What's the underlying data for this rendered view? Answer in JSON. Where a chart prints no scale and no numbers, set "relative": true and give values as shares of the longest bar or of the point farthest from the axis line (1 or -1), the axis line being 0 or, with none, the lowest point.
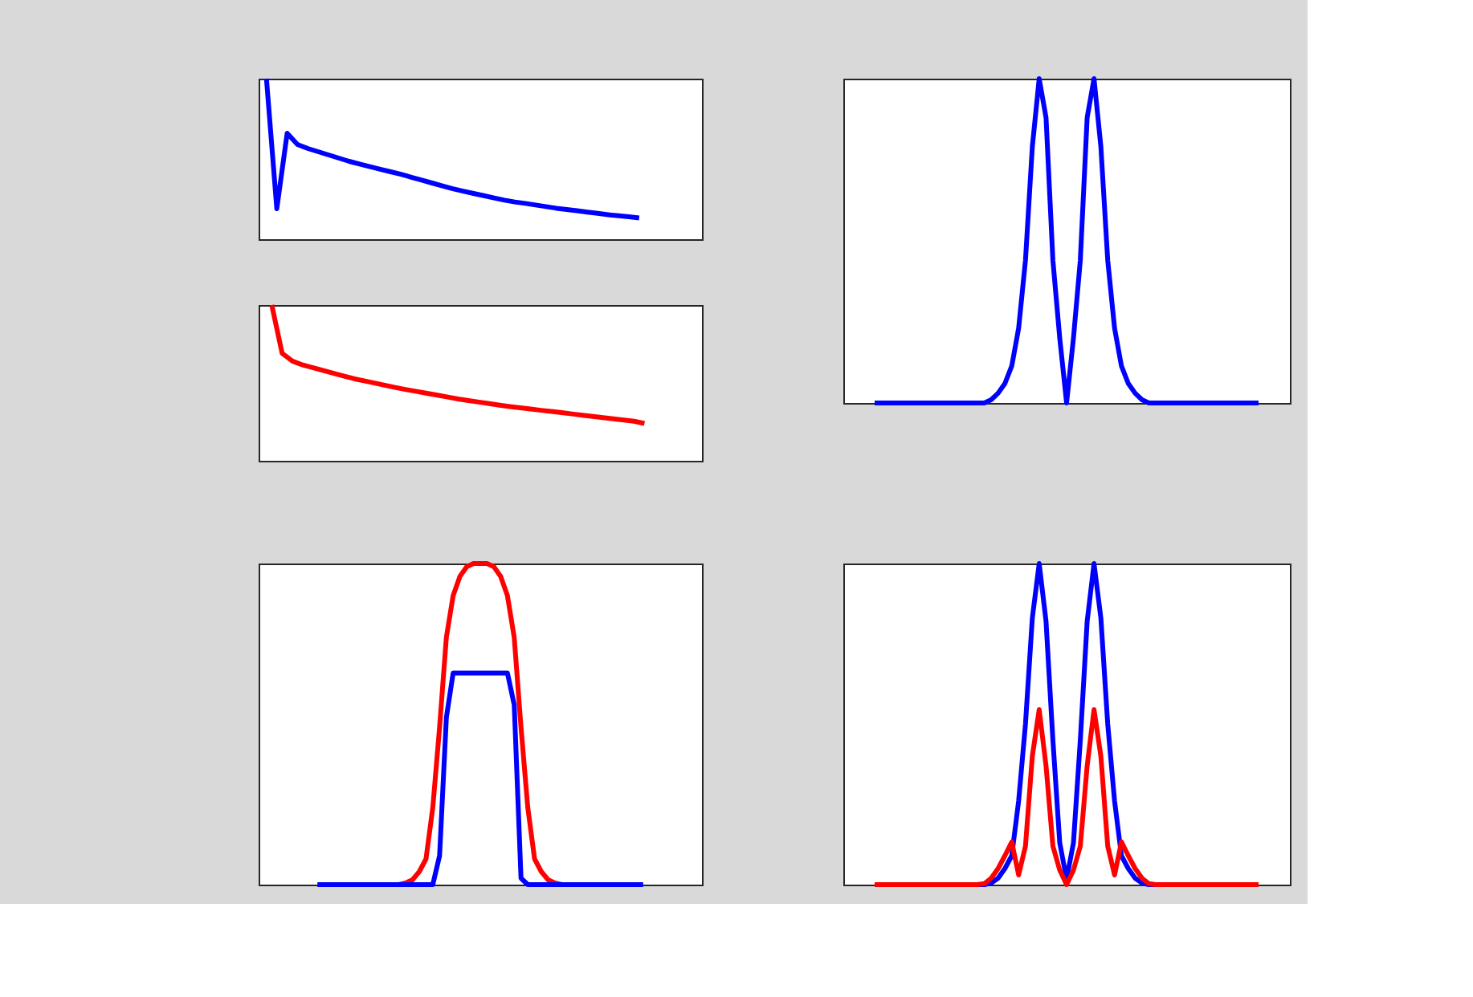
{
  "chart_data": [
    {
      "type": "line",
      "relative": true,
      "tick_labels": false,
      "categories": [
        null,
        null,
        null,
        null,
        null,
        null,
        null,
        null,
        null,
        null,
        null,
        null,
        null,
        null,
        null,
        null,
        null,
        null,
        null,
        null,
        null,
        null,
        null,
        null,
        null,
        null,
        null,
        null,
        null,
        null,
        null,
        null,
        null,
        null,
        null,
        null,
        null
      ],
      "series": [
        {
          "color": "#0000ff",
          "values": [
            1.0,
            0.19,
            0.66,
            0.59,
            0.565,
            0.545,
            0.525,
            0.505,
            0.485,
            0.468,
            0.452,
            0.436,
            0.42,
            0.404,
            0.386,
            0.368,
            0.35,
            0.332,
            0.314,
            0.299,
            0.285,
            0.271,
            0.257,
            0.243,
            0.232,
            0.223,
            0.213,
            0.203,
            0.193,
            0.185,
            0.177,
            0.169,
            0.161,
            0.153,
            0.146,
            0.14,
            0.133
          ]
        }
      ]
    },
    {
      "type": "line",
      "relative": true,
      "tick_labels": false,
      "categories": [
        null,
        null,
        null,
        null,
        null,
        null,
        null,
        null,
        null,
        null,
        null,
        null,
        null,
        null,
        null,
        null,
        null,
        null,
        null,
        null,
        null,
        null,
        null,
        null,
        null,
        null,
        null,
        null,
        null,
        null,
        null,
        null,
        null,
        null,
        null,
        null,
        null
      ],
      "series": [
        {
          "color": "#ff0000",
          "values": [
            1.0,
            0.69,
            0.64,
            0.615,
            0.597,
            0.579,
            0.561,
            0.543,
            0.526,
            0.512,
            0.498,
            0.484,
            0.47,
            0.457,
            0.445,
            0.433,
            0.421,
            0.409,
            0.397,
            0.387,
            0.377,
            0.367,
            0.357,
            0.348,
            0.34,
            0.332,
            0.324,
            0.317,
            0.309,
            0.301,
            0.293,
            0.285,
            0.277,
            0.269,
            0.262,
            0.254,
            0.24
          ]
        }
      ]
    },
    {
      "type": "line",
      "relative": true,
      "tick_labels": false,
      "categories": [
        null,
        null,
        null,
        null,
        null,
        null,
        null,
        null,
        null,
        null,
        null,
        null,
        null,
        null,
        null,
        null,
        null,
        null,
        null,
        null,
        null,
        null,
        null,
        null,
        null,
        null,
        null,
        null,
        null,
        null,
        null,
        null,
        null,
        null,
        null,
        null,
        null,
        null,
        null,
        null,
        null,
        null,
        null,
        null,
        null,
        null,
        null,
        null,
        null,
        null,
        null,
        null,
        null,
        null,
        null,
        null,
        null
      ],
      "series": [
        {
          "color": "#0000ff",
          "values": [
            0,
            0,
            0,
            0,
            0,
            0,
            0,
            0,
            0,
            0,
            0,
            0,
            0,
            0,
            0,
            0,
            0,
            0.01,
            0.03,
            0.06,
            0.114,
            0.23,
            0.44,
            0.79,
            1,
            0.88,
            0.44,
            0.2,
            0,
            0.2,
            0.44,
            0.88,
            1,
            0.79,
            0.44,
            0.23,
            0.114,
            0.06,
            0.03,
            0.01,
            0,
            0,
            0,
            0,
            0,
            0,
            0,
            0,
            0,
            0,
            0,
            0,
            0,
            0,
            0,
            0,
            0
          ]
        }
      ]
    },
    {
      "type": "line",
      "relative": true,
      "tick_labels": false,
      "categories": [
        null,
        null,
        null,
        null,
        null,
        null,
        null,
        null,
        null,
        null,
        null,
        null,
        null,
        null,
        null,
        null,
        null,
        null,
        null,
        null,
        null,
        null,
        null,
        null,
        null,
        null,
        null,
        null,
        null,
        null,
        null,
        null,
        null,
        null,
        null,
        null,
        null,
        null,
        null,
        null,
        null,
        null,
        null,
        null,
        null,
        null,
        null,
        null,
        null
      ],
      "series": [
        {
          "color": "#ff0000",
          "values": [
            null,
            null,
            null,
            null,
            null,
            null,
            null,
            null,
            null,
            null,
            0,
            0,
            0,
            0.005,
            0.015,
            0.04,
            0.08,
            0.24,
            0.49,
            0.77,
            0.9,
            0.96,
            0.99,
            1,
            1,
            1,
            0.99,
            0.96,
            0.9,
            0.77,
            0.49,
            0.24,
            0.08,
            0.04,
            0.015,
            0.005,
            0,
            0,
            0,
            null,
            null,
            null,
            null,
            null,
            null,
            null,
            null,
            null,
            null
          ]
        },
        {
          "color": "#0000ff",
          "values": [
            0,
            0,
            0,
            0,
            0,
            0,
            0,
            0,
            0,
            0,
            0,
            0,
            0,
            0,
            0,
            0,
            0,
            0,
            0.09,
            0.52,
            0.659,
            0.659,
            0.659,
            0.659,
            0.659,
            0.659,
            0.659,
            0.659,
            0.659,
            0.56,
            0.02,
            0,
            0,
            0,
            0,
            0,
            0,
            0,
            0,
            0,
            0,
            0,
            0,
            0,
            0,
            0,
            0,
            0,
            0
          ]
        }
      ]
    },
    {
      "type": "line",
      "relative": true,
      "tick_labels": false,
      "categories": [
        null,
        null,
        null,
        null,
        null,
        null,
        null,
        null,
        null,
        null,
        null,
        null,
        null,
        null,
        null,
        null,
        null,
        null,
        null,
        null,
        null,
        null,
        null,
        null,
        null,
        null,
        null,
        null,
        null,
        null,
        null,
        null,
        null,
        null,
        null,
        null,
        null,
        null,
        null,
        null,
        null,
        null,
        null,
        null,
        null,
        null,
        null,
        null,
        null,
        null,
        null,
        null,
        null,
        null,
        null,
        null,
        null
      ],
      "series": [
        {
          "color": "#0000ff",
          "values": [
            null,
            null,
            null,
            null,
            null,
            null,
            null,
            null,
            null,
            null,
            null,
            null,
            null,
            null,
            null,
            0,
            0,
            0.005,
            0.02,
            0.05,
            0.09,
            0.26,
            0.5,
            0.83,
            1,
            0.82,
            0.45,
            0.13,
            0.017,
            0.13,
            0.45,
            0.82,
            1,
            0.83,
            0.5,
            0.26,
            0.09,
            0.05,
            0.02,
            0.005,
            0,
            0,
            null,
            null,
            null,
            null,
            null,
            null,
            null,
            null,
            null,
            null,
            null,
            null,
            null,
            null,
            null
          ]
        },
        {
          "color": "#ff0000",
          "values": [
            0,
            0,
            0,
            0,
            0,
            0,
            0,
            0,
            0,
            0,
            0,
            0,
            0,
            0,
            0,
            0,
            0.003,
            0.02,
            0.05,
            0.09,
            0.133,
            0.03,
            0.12,
            0.4,
            0.545,
            0.37,
            0.12,
            0.045,
            0,
            0.045,
            0.12,
            0.37,
            0.545,
            0.4,
            0.12,
            0.03,
            0.133,
            0.09,
            0.05,
            0.02,
            0.003,
            0,
            0,
            0,
            0,
            0,
            0,
            0,
            0,
            0,
            0,
            0,
            0,
            0,
            0,
            0,
            0
          ]
        }
      ]
    }
  ]
}
